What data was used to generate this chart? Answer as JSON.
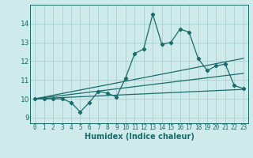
{
  "title": "",
  "xlabel": "Humidex (Indice chaleur)",
  "bg_color": "#ceeaeb",
  "grid_color": "#aad4d6",
  "line_color": "#1a6b6b",
  "xlim": [
    -0.5,
    23.5
  ],
  "ylim": [
    8.7,
    15.0
  ],
  "xticks": [
    0,
    1,
    2,
    3,
    4,
    5,
    6,
    7,
    8,
    9,
    10,
    11,
    12,
    13,
    14,
    15,
    16,
    17,
    18,
    19,
    20,
    21,
    22,
    23
  ],
  "yticks": [
    9,
    10,
    11,
    12,
    13,
    14
  ],
  "series1_x": [
    0,
    1,
    2,
    3,
    4,
    5,
    6,
    7,
    8,
    9,
    10,
    11,
    12,
    13,
    14,
    15,
    16,
    17,
    18,
    19,
    20,
    21,
    22,
    23
  ],
  "series1_y": [
    10.0,
    10.0,
    10.0,
    10.0,
    9.8,
    9.3,
    9.8,
    10.4,
    10.3,
    10.1,
    11.1,
    12.4,
    12.65,
    14.5,
    12.9,
    13.0,
    13.7,
    13.55,
    12.15,
    11.5,
    11.75,
    11.85,
    10.7,
    10.55
  ],
  "series2_x": [
    0,
    23
  ],
  "series2_y": [
    10.0,
    10.5
  ],
  "series3_x": [
    0,
    23
  ],
  "series3_y": [
    10.0,
    12.15
  ],
  "series4_x": [
    0,
    23
  ],
  "series4_y": [
    10.0,
    11.35
  ]
}
